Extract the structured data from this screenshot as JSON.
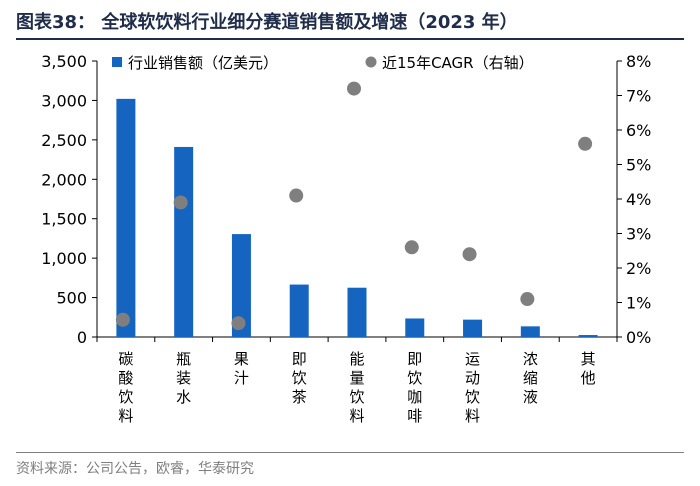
{
  "figure": {
    "title": "图表38： 全球软饮料行业细分赛道销售额及增速（2023 年）",
    "source": "资料来源：公司公告，欧睿，华泰研究"
  },
  "colors": {
    "bar": "#1565c0",
    "dot": "#7f7f7f",
    "title": "#1f2d4a"
  },
  "chart_data": {
    "type": "bar",
    "categories": [
      "碳酸饮料",
      "瓶装水",
      "果汁",
      "即饮茶",
      "能量饮料",
      "即饮咖啡",
      "运动饮料",
      "浓缩液",
      "其他"
    ],
    "series": [
      {
        "name": "行业销售额（亿美元）",
        "type": "bar",
        "axis": "left",
        "values": [
          3020,
          2410,
          1305,
          665,
          625,
          235,
          220,
          135,
          25
        ]
      },
      {
        "name": "近15年CAGR（右轴）",
        "type": "scatter",
        "axis": "right",
        "values": [
          0.5,
          3.9,
          0.4,
          4.1,
          7.2,
          2.6,
          2.4,
          1.1,
          5.6
        ]
      }
    ],
    "y_left": {
      "min": 0,
      "max": 3500,
      "step": 500,
      "tick_labels": [
        "0",
        "500",
        "1,000",
        "1,500",
        "2,000",
        "2,500",
        "3,000",
        "3,500"
      ]
    },
    "y_right": {
      "min": 0,
      "max": 8,
      "step": 1,
      "tick_labels": [
        "0%",
        "1%",
        "2%",
        "3%",
        "4%",
        "5%",
        "6%",
        "7%",
        "8%"
      ]
    },
    "legend_position": "top",
    "grid": false
  }
}
